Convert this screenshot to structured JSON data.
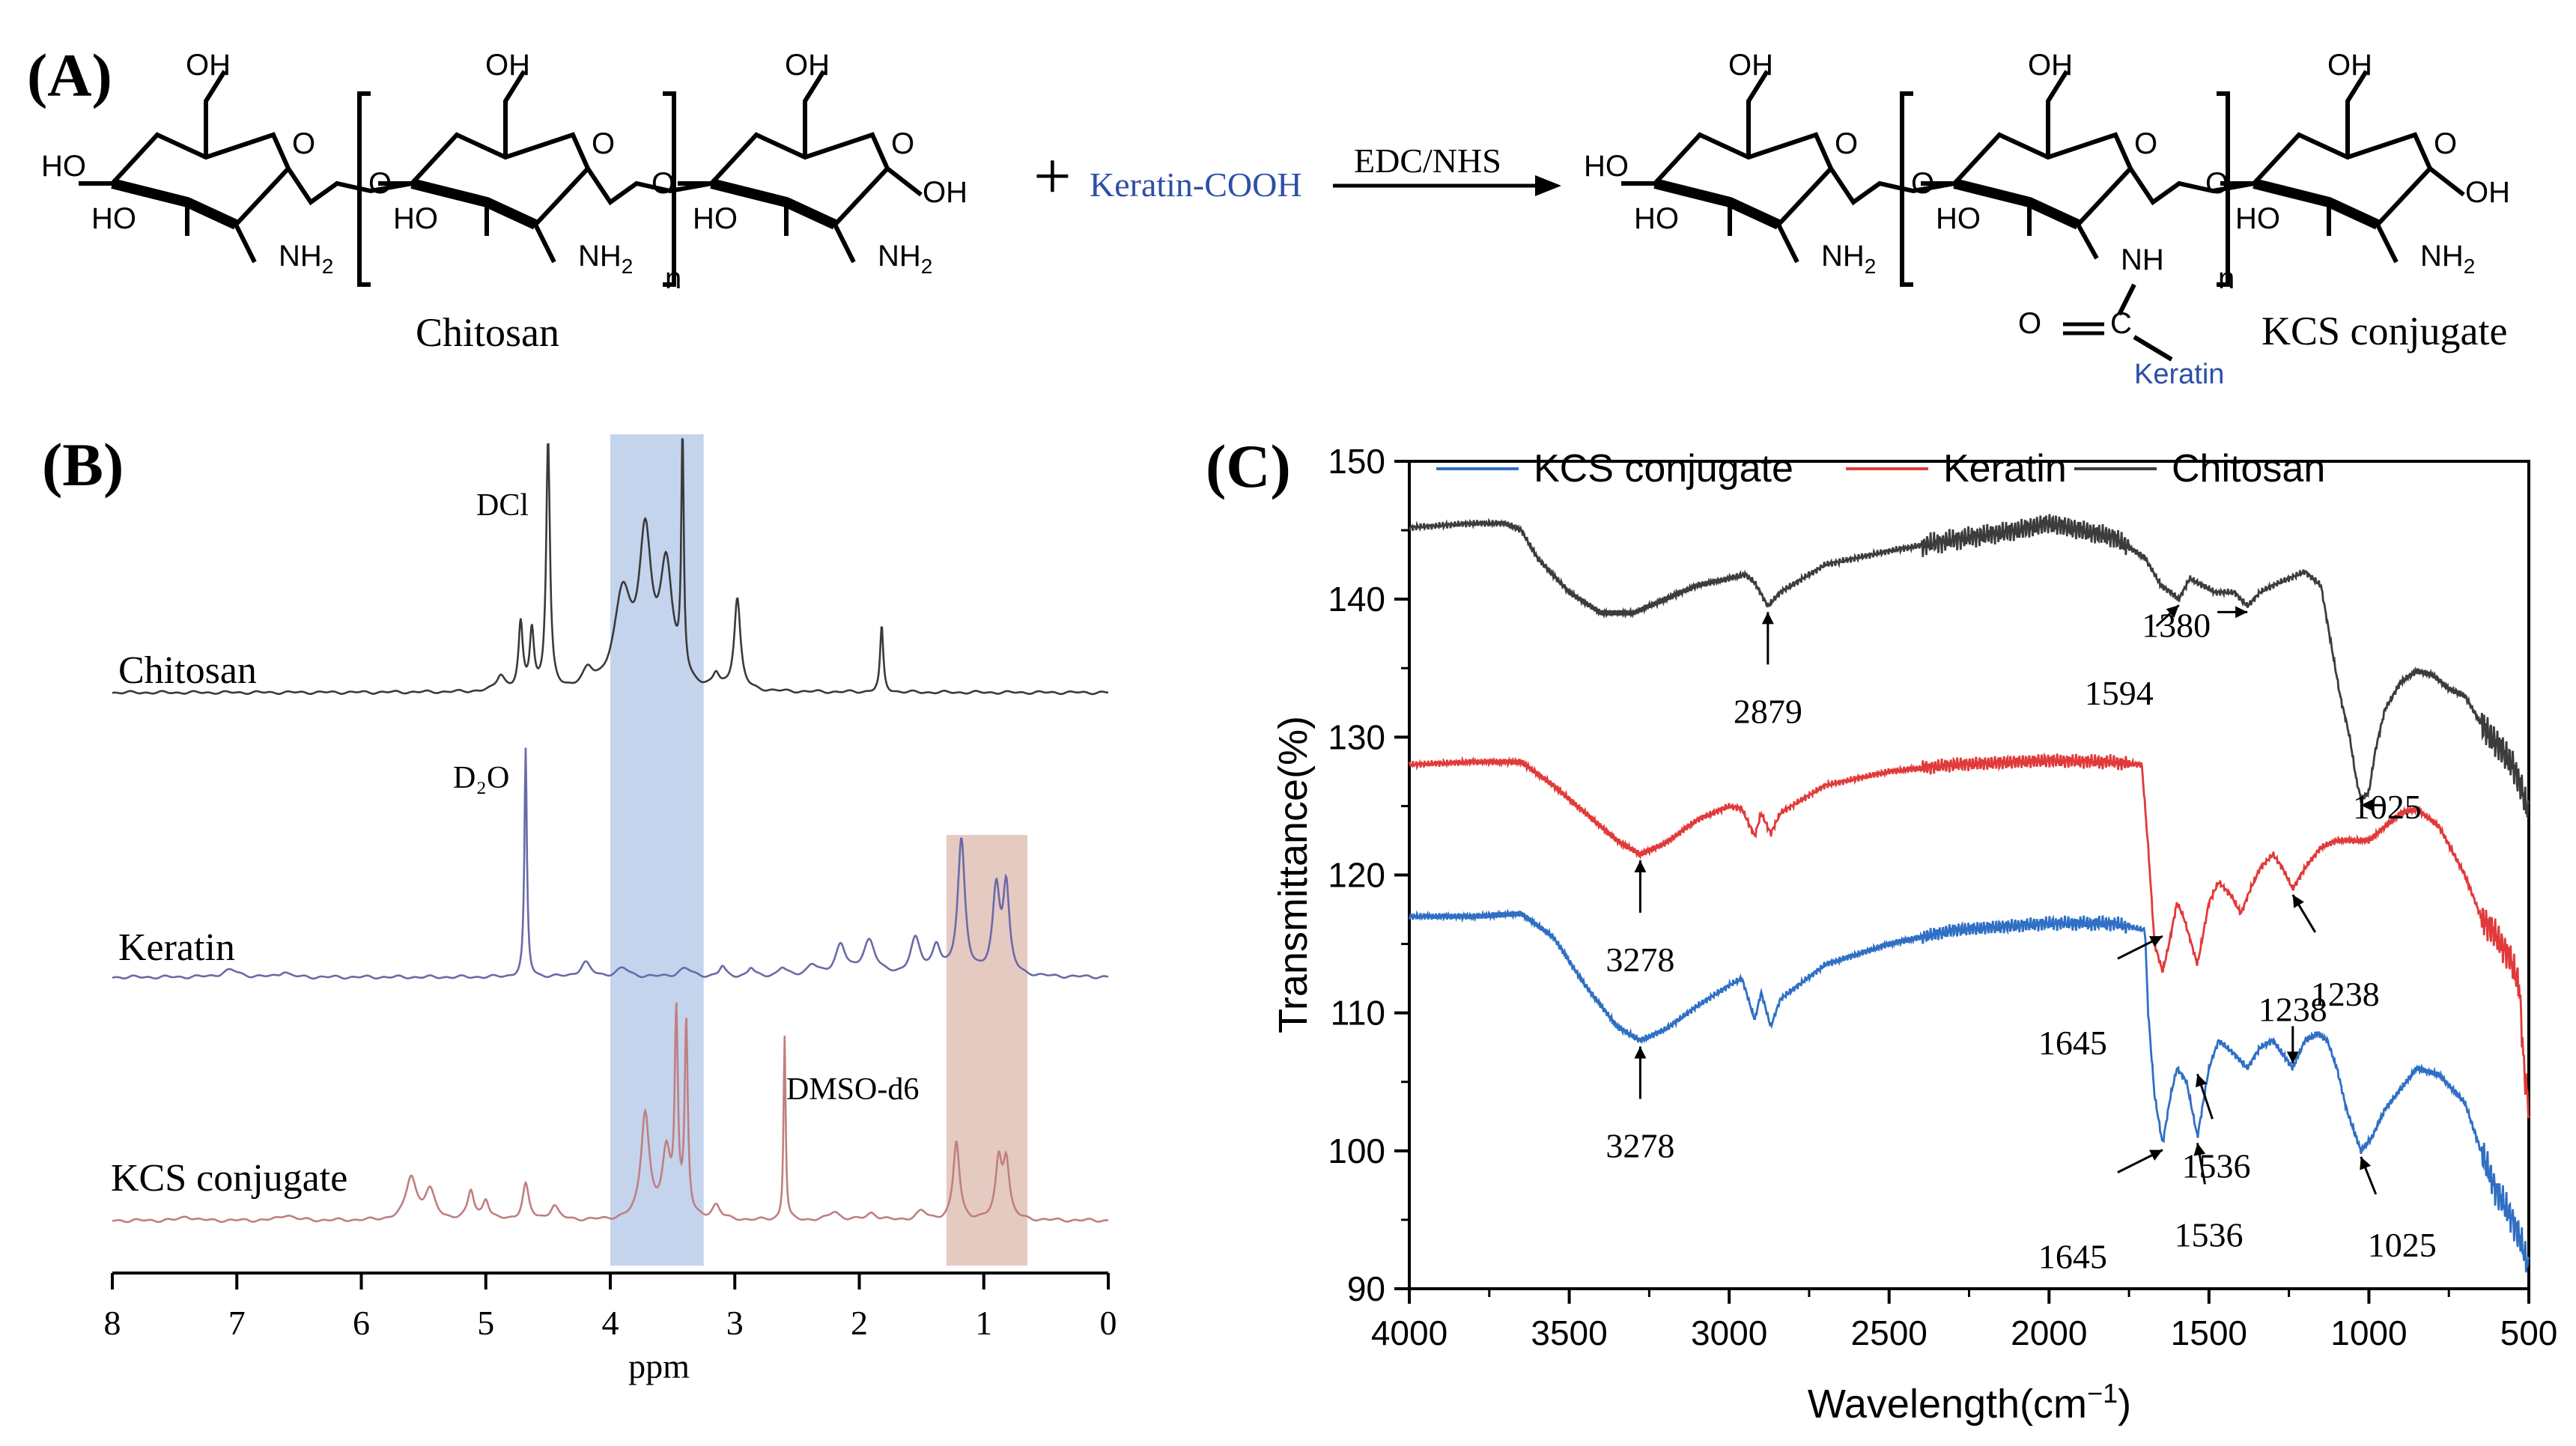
{
  "panel_a": {
    "label": "(A)",
    "chitosan": {
      "name": "Chitosan",
      "oh": "OH",
      "ho": "HO",
      "o": "O",
      "nh2": "NH",
      "sub2": "2",
      "n": "n"
    },
    "plus": "+",
    "reagent": "Keratin-COOH",
    "conditions": "EDC/NHS",
    "product": {
      "name": "KCS conjugate",
      "nh": "NH",
      "carbonyl_o": "O",
      "carbonyl_c": "C",
      "keratin": "Keratin"
    },
    "colors": {
      "keratin_text": "#2d4fa6",
      "ink": "#000000"
    }
  },
  "chart_data": [
    {
      "panel": "(B)",
      "type": "line",
      "xlabel": "ppm",
      "ylabel": "",
      "xlim": [
        8,
        0
      ],
      "x_ticks": [
        "8",
        "7",
        "6",
        "5",
        "4",
        "3",
        "2",
        "1",
        "0"
      ],
      "grid": false,
      "legend": "none",
      "annotations": [
        "DCl",
        "D₂O",
        "DMSO-d6"
      ],
      "highlight_bands": [
        {
          "x_range": [
            4.0,
            3.25
          ],
          "color": "#7f9fd6"
        },
        {
          "x_range": [
            1.3,
            0.65
          ],
          "color": "#c68a78"
        }
      ],
      "series": [
        {
          "name": "Chitosan",
          "color": "#3a3a3a",
          "peaks": [
            {
              "x": 4.88,
              "h": 0.12,
              "w": 0.04
            },
            {
              "x": 4.72,
              "h": 0.5,
              "w": 0.02
            },
            {
              "x": 4.63,
              "h": 0.45,
              "w": 0.02
            },
            {
              "x": 4.5,
              "h": 1.9,
              "w": 0.018
            },
            {
              "x": 4.18,
              "h": 0.12,
              "w": 0.05
            },
            {
              "x": 3.9,
              "h": 0.7,
              "w": 0.08
            },
            {
              "x": 3.72,
              "h": 1.1,
              "w": 0.06
            },
            {
              "x": 3.55,
              "h": 0.9,
              "w": 0.06
            },
            {
              "x": 3.42,
              "h": 1.8,
              "w": 0.012
            },
            {
              "x": 3.15,
              "h": 0.1,
              "w": 0.03
            },
            {
              "x": 2.98,
              "h": 0.7,
              "w": 0.03
            },
            {
              "x": 1.82,
              "h": 0.5,
              "w": 0.015
            }
          ]
        },
        {
          "name": "Keratin",
          "color": "#6a6aa8",
          "peaks": [
            {
              "x": 7.05,
              "h": 0.05,
              "w": 0.08
            },
            {
              "x": 6.62,
              "h": 0.04,
              "w": 0.04
            },
            {
              "x": 4.68,
              "h": 1.6,
              "w": 0.012
            },
            {
              "x": 4.2,
              "h": 0.1,
              "w": 0.05
            },
            {
              "x": 3.9,
              "h": 0.06,
              "w": 0.06
            },
            {
              "x": 3.4,
              "h": 0.06,
              "w": 0.06
            },
            {
              "x": 3.1,
              "h": 0.07,
              "w": 0.03
            },
            {
              "x": 2.87,
              "h": 0.06,
              "w": 0.03
            },
            {
              "x": 2.62,
              "h": 0.06,
              "w": 0.04
            },
            {
              "x": 2.38,
              "h": 0.08,
              "w": 0.05
            },
            {
              "x": 2.15,
              "h": 0.22,
              "w": 0.05
            },
            {
              "x": 1.92,
              "h": 0.25,
              "w": 0.06
            },
            {
              "x": 1.55,
              "h": 0.25,
              "w": 0.05
            },
            {
              "x": 1.38,
              "h": 0.2,
              "w": 0.04
            },
            {
              "x": 1.18,
              "h": 0.95,
              "w": 0.035
            },
            {
              "x": 0.9,
              "h": 0.6,
              "w": 0.035
            },
            {
              "x": 0.82,
              "h": 0.6,
              "w": 0.03
            }
          ]
        },
        {
          "name": "KCS conjugate",
          "color": "#c07f80",
          "peaks": [
            {
              "x": 7.4,
              "h": 0.03,
              "w": 0.05
            },
            {
              "x": 6.6,
              "h": 0.04,
              "w": 0.06
            },
            {
              "x": 5.6,
              "h": 0.3,
              "w": 0.05
            },
            {
              "x": 5.45,
              "h": 0.2,
              "w": 0.05
            },
            {
              "x": 5.12,
              "h": 0.2,
              "w": 0.03
            },
            {
              "x": 5.0,
              "h": 0.14,
              "w": 0.03
            },
            {
              "x": 4.68,
              "h": 0.25,
              "w": 0.03
            },
            {
              "x": 4.45,
              "h": 0.1,
              "w": 0.04
            },
            {
              "x": 3.72,
              "h": 0.75,
              "w": 0.04
            },
            {
              "x": 3.55,
              "h": 0.45,
              "w": 0.04
            },
            {
              "x": 3.47,
              "h": 1.4,
              "w": 0.015
            },
            {
              "x": 3.39,
              "h": 1.35,
              "w": 0.015
            },
            {
              "x": 3.15,
              "h": 0.1,
              "w": 0.04
            },
            {
              "x": 2.6,
              "h": 1.3,
              "w": 0.01
            },
            {
              "x": 2.2,
              "h": 0.06,
              "w": 0.05
            },
            {
              "x": 1.9,
              "h": 0.05,
              "w": 0.05
            },
            {
              "x": 1.5,
              "h": 0.06,
              "w": 0.05
            },
            {
              "x": 1.22,
              "h": 0.55,
              "w": 0.03
            },
            {
              "x": 0.88,
              "h": 0.4,
              "w": 0.03
            },
            {
              "x": 0.82,
              "h": 0.4,
              "w": 0.03
            }
          ]
        }
      ]
    },
    {
      "panel": "(C)",
      "type": "line",
      "xlabel": "Wavelength(cm",
      "xlabel_sup": "−1",
      "xlabel_close": ")",
      "ylabel": "Transmittance(%)",
      "xlim": [
        4000,
        500
      ],
      "ylim": [
        90,
        150
      ],
      "x_ticks": [
        4000,
        3500,
        3000,
        2500,
        2000,
        1500,
        1000,
        500
      ],
      "y_ticks": [
        90,
        100,
        110,
        120,
        130,
        140,
        150
      ],
      "grid": false,
      "legend": "top",
      "series": [
        {
          "name": "KCS conjugate",
          "color": "#2f6fc4",
          "points": [
            [
              4000,
              117
            ],
            [
              3800,
              117
            ],
            [
              3650,
              117.2
            ],
            [
              3550,
              115.5
            ],
            [
              3450,
              112
            ],
            [
              3350,
              109
            ],
            [
              3278,
              108
            ],
            [
              3200,
              108.8
            ],
            [
              3100,
              110.5
            ],
            [
              3000,
              112
            ],
            [
              2960,
              112.5
            ],
            [
              2920,
              109.5
            ],
            [
              2900,
              111.5
            ],
            [
              2870,
              109
            ],
            [
              2840,
              111
            ],
            [
              2700,
              113.5
            ],
            [
              2500,
              115
            ],
            [
              2300,
              116
            ],
            [
              2000,
              116.5
            ],
            [
              1800,
              116.5
            ],
            [
              1700,
              116
            ],
            [
              1690,
              110
            ],
            [
              1670,
              104
            ],
            [
              1645,
              100.5
            ],
            [
              1620,
              104
            ],
            [
              1600,
              106
            ],
            [
              1570,
              105
            ],
            [
              1536,
              101
            ],
            [
              1500,
              106
            ],
            [
              1470,
              108
            ],
            [
              1420,
              107
            ],
            [
              1380,
              106
            ],
            [
              1340,
              107.5
            ],
            [
              1300,
              108
            ],
            [
              1238,
              106
            ],
            [
              1200,
              108
            ],
            [
              1160,
              108.5
            ],
            [
              1130,
              108
            ],
            [
              1100,
              106
            ],
            [
              1070,
              103
            ],
            [
              1025,
              100
            ],
            [
              990,
              101
            ],
            [
              950,
              103
            ],
            [
              900,
              104.5
            ],
            [
              850,
              106
            ],
            [
              780,
              105.5
            ],
            [
              700,
              103.5
            ],
            [
              650,
              100
            ],
            [
              600,
              97
            ],
            [
              550,
              95
            ],
            [
              520,
              93
            ],
            [
              500,
              91.5
            ]
          ],
          "annotations": [
            {
              "label": "3278",
              "x": 3278,
              "y": 108
            },
            {
              "label": "1645",
              "x": 1645,
              "y": 116
            },
            {
              "label": "1536",
              "x": 1536,
              "y": 101
            },
            {
              "label": "1645",
              "x": 1645,
              "y": 100.5
            },
            {
              "label": "1536",
              "x": 1536,
              "y": 106
            },
            {
              "label": "1238",
              "x": 1238,
              "y": 106
            },
            {
              "label": "1025",
              "x": 1025,
              "y": 100
            }
          ]
        },
        {
          "name": "Keratin",
          "color": "#e03a3a",
          "points": [
            [
              4000,
              128
            ],
            [
              3800,
              128.2
            ],
            [
              3650,
              128.2
            ],
            [
              3550,
              126.5
            ],
            [
              3450,
              124.5
            ],
            [
              3350,
              122.5
            ],
            [
              3278,
              121.5
            ],
            [
              3200,
              122.3
            ],
            [
              3100,
              124
            ],
            [
              3000,
              125
            ],
            [
              2960,
              124.8
            ],
            [
              2920,
              122.8
            ],
            [
              2900,
              124.5
            ],
            [
              2870,
              123
            ],
            [
              2840,
              124.5
            ],
            [
              2700,
              126.5
            ],
            [
              2500,
              127.5
            ],
            [
              2300,
              128
            ],
            [
              2000,
              128.3
            ],
            [
              1800,
              128.2
            ],
            [
              1710,
              128
            ],
            [
              1690,
              122
            ],
            [
              1670,
              115
            ],
            [
              1645,
              113
            ],
            [
              1625,
              115
            ],
            [
              1600,
              118
            ],
            [
              1580,
              117
            ],
            [
              1536,
              113.5
            ],
            [
              1500,
              118
            ],
            [
              1470,
              119.5
            ],
            [
              1430,
              118.5
            ],
            [
              1400,
              117.2
            ],
            [
              1370,
              119
            ],
            [
              1340,
              120.5
            ],
            [
              1300,
              121.5
            ],
            [
              1270,
              120.5
            ],
            [
              1238,
              119
            ],
            [
              1200,
              120.5
            ],
            [
              1150,
              122
            ],
            [
              1100,
              122.5
            ],
            [
              1050,
              122.5
            ],
            [
              1000,
              122.5
            ],
            [
              950,
              123.5
            ],
            [
              900,
              124.5
            ],
            [
              850,
              124.8
            ],
            [
              780,
              123.5
            ],
            [
              700,
              120
            ],
            [
              650,
              117
            ],
            [
              600,
              115.5
            ],
            [
              560,
              114
            ],
            [
              530,
              112
            ],
            [
              515,
              106
            ],
            [
              500,
              103
            ]
          ],
          "annotations": [
            {
              "label": "3278",
              "x": 3278,
              "y": 121.5
            },
            {
              "label": "1238",
              "x": 1238,
              "y": 119
            }
          ]
        },
        {
          "name": "Chitosan",
          "color": "#3c3c3c",
          "points": [
            [
              4000,
              145.2
            ],
            [
              3800,
              145.5
            ],
            [
              3700,
              145.5
            ],
            [
              3650,
              145
            ],
            [
              3600,
              143
            ],
            [
              3500,
              140.5
            ],
            [
              3400,
              139
            ],
            [
              3300,
              139
            ],
            [
              3200,
              140
            ],
            [
              3100,
              141
            ],
            [
              3000,
              141.5
            ],
            [
              2950,
              141.8
            ],
            [
              2920,
              141.2
            ],
            [
              2879,
              139.5
            ],
            [
              2840,
              140.5
            ],
            [
              2700,
              142.5
            ],
            [
              2500,
              143.5
            ],
            [
              2300,
              144.3
            ],
            [
              2100,
              145
            ],
            [
              2000,
              145.5
            ],
            [
              1900,
              145
            ],
            [
              1800,
              144.5
            ],
            [
              1700,
              143
            ],
            [
              1650,
              141
            ],
            [
              1620,
              140.5
            ],
            [
              1594,
              140
            ],
            [
              1560,
              141.5
            ],
            [
              1520,
              141
            ],
            [
              1480,
              140.5
            ],
            [
              1420,
              140.5
            ],
            [
              1380,
              139.5
            ],
            [
              1340,
              140.5
            ],
            [
              1300,
              141
            ],
            [
              1250,
              141.5
            ],
            [
              1200,
              142
            ],
            [
              1150,
              141
            ],
            [
              1120,
              137
            ],
            [
              1090,
              133
            ],
            [
              1060,
              130
            ],
            [
              1040,
              127
            ],
            [
              1025,
              125.5
            ],
            [
              1000,
              126
            ],
            [
              980,
              129
            ],
            [
              950,
              132
            ],
            [
              900,
              134
            ],
            [
              850,
              134.8
            ],
            [
              800,
              134.5
            ],
            [
              750,
              133.5
            ],
            [
              700,
              133
            ],
            [
              650,
              131
            ],
            [
              600,
              129.5
            ],
            [
              550,
              128
            ],
            [
              520,
              126
            ],
            [
              500,
              124.5
            ]
          ],
          "annotations": [
            {
              "label": "2879",
              "x": 2879,
              "y": 139.5
            },
            {
              "label": "1594",
              "x": 1594,
              "y": 140
            },
            {
              "label": "1380",
              "x": 1380,
              "y": 139.5
            },
            {
              "label": "1025",
              "x": 1025,
              "y": 125.5
            }
          ]
        }
      ]
    }
  ]
}
